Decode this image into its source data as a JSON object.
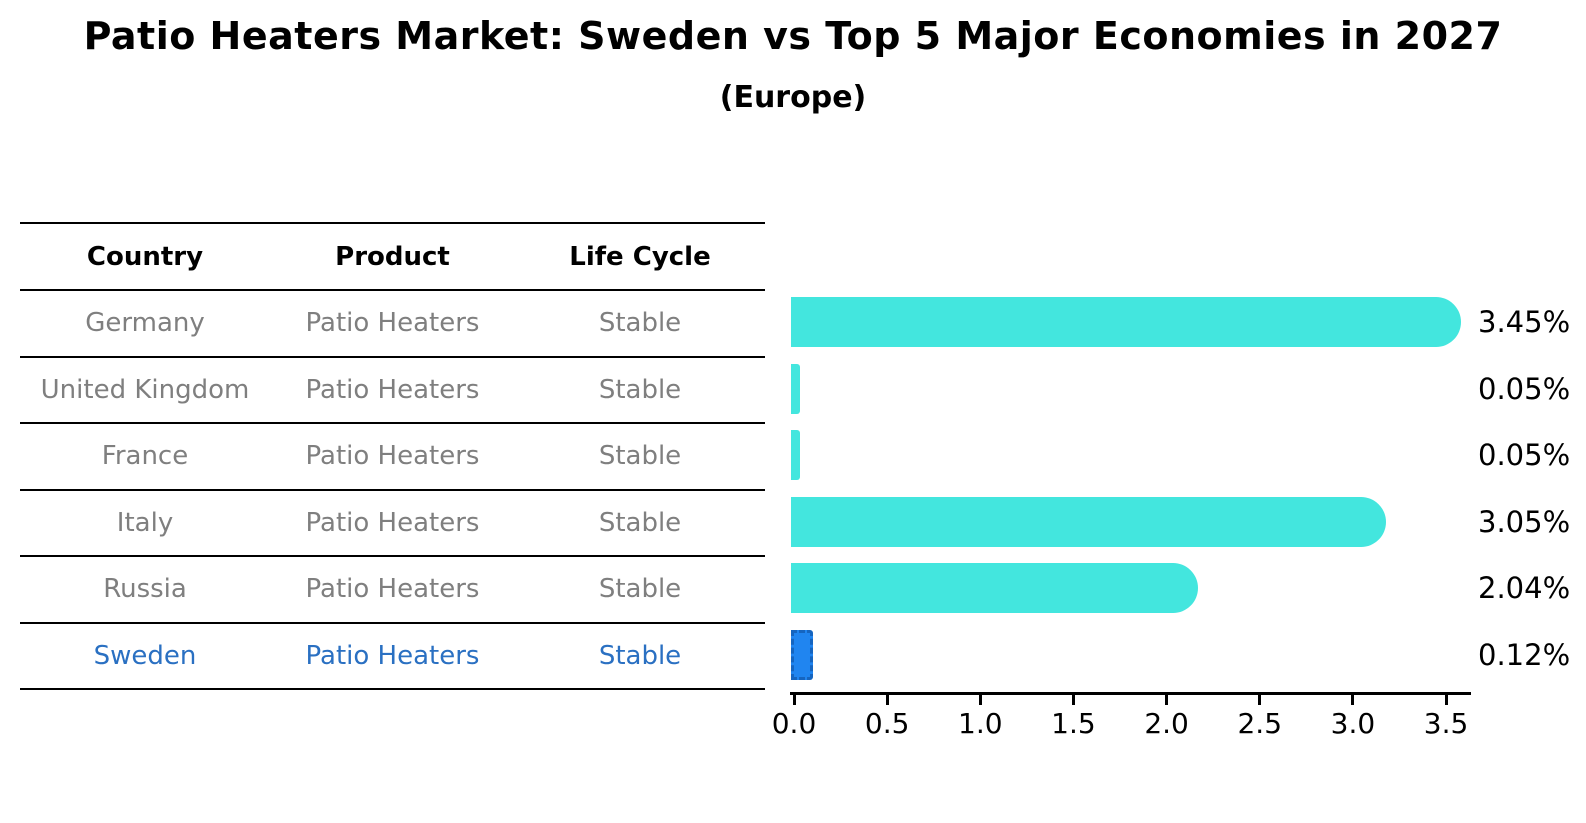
{
  "title": "Patio Heaters Market: Sweden vs Top 5 Major Economies in 2027",
  "subtitle": "(Europe)",
  "colors": {
    "bar_default": "#43e6de",
    "bar_highlight_fill": "#2085f0",
    "bar_highlight_border": "#1565c0",
    "table_text": "#7f7f7f",
    "highlight_text": "#2a70c2",
    "axis_text": "#000000"
  },
  "table": {
    "headers": [
      "Country",
      "Product",
      "Life Cycle"
    ],
    "rows": [
      {
        "country": "Germany",
        "product": "Patio Heaters",
        "life_cycle": "Stable",
        "value": 3.45,
        "label": "3.45%",
        "highlight": false
      },
      {
        "country": "United Kingdom",
        "product": "Patio Heaters",
        "life_cycle": "Stable",
        "value": 0.05,
        "label": "0.05%",
        "highlight": false
      },
      {
        "country": "France",
        "product": "Patio Heaters",
        "life_cycle": "Stable",
        "value": 0.05,
        "label": "0.05%",
        "highlight": false
      },
      {
        "country": "Italy",
        "product": "Patio Heaters",
        "life_cycle": "Stable",
        "value": 3.05,
        "label": "3.05%",
        "highlight": false
      },
      {
        "country": "Russia",
        "product": "Patio Heaters",
        "life_cycle": "Stable",
        "value": 2.04,
        "label": "2.04%",
        "highlight": false
      },
      {
        "country": "Sweden",
        "product": "Patio Heaters",
        "life_cycle": "Stable",
        "value": 0.12,
        "label": "0.12%",
        "highlight": true
      }
    ]
  },
  "chart_data": {
    "type": "bar",
    "orientation": "horizontal",
    "title": "Patio Heaters Market: Sweden vs Top 5 Major Economies in 2027",
    "subtitle": "(Europe)",
    "categories": [
      "Germany",
      "United Kingdom",
      "France",
      "Italy",
      "Russia",
      "Sweden"
    ],
    "values": [
      3.45,
      0.05,
      0.05,
      3.05,
      2.04,
      0.12
    ],
    "value_labels": [
      "3.45%",
      "0.05%",
      "0.05%",
      "3.05%",
      "2.04%",
      "0.12%"
    ],
    "highlight_index": 5,
    "xlabel": "",
    "ylabel": "",
    "xlim": [
      0.0,
      3.63
    ],
    "xticks": [
      "0.0",
      "0.5",
      "1.0",
      "1.5",
      "2.0",
      "2.5",
      "3.0",
      "3.5"
    ],
    "grid": false,
    "legend": false
  }
}
